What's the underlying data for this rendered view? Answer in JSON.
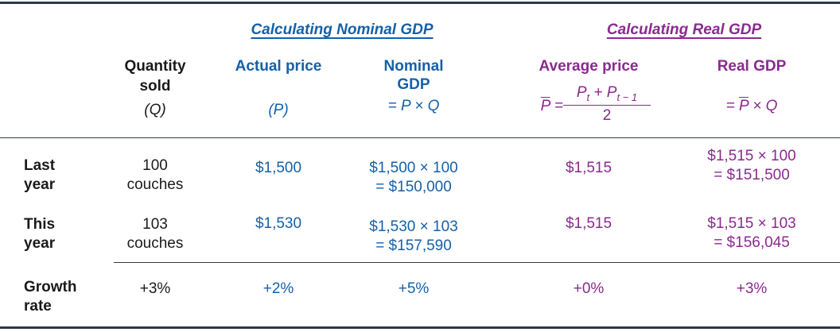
{
  "groups": {
    "nominal": "Calculating Nominal GDP",
    "real": "Calculating Real GDP"
  },
  "headers": {
    "quantity": {
      "line1": "Quantity",
      "line2": "sold",
      "line3": "(Q)"
    },
    "actual_price": {
      "line1": "Actual price",
      "line3": "(P)"
    },
    "nominal_gdp": {
      "line1": "Nominal",
      "line2": "GDP",
      "line3": "= P × Q"
    },
    "average_price": {
      "line1": "Average price",
      "lhs": "P =",
      "numerator": "P",
      "numerator_sub1": "t",
      "numerator_mid": " + P",
      "numerator_sub2": "t − 1",
      "denominator": "2"
    },
    "real_gdp": {
      "line1": "Real GDP",
      "line3": "= P × Q"
    }
  },
  "rows": [
    {
      "label_line1": "Last",
      "label_line2": "year",
      "quantity_line1": "100",
      "quantity_line2": "couches",
      "actual_price": "$1,500",
      "nominal_line1": "$1,500 × 100",
      "nominal_line2": "= $150,000",
      "average_price": "$1,515",
      "real_line1": "$1,515 × 100",
      "real_line2": "= $151,500"
    },
    {
      "label_line1": "This",
      "label_line2": "year",
      "quantity_line1": "103",
      "quantity_line2": "couches",
      "actual_price": "$1,530",
      "nominal_line1": "$1,530 × 103",
      "nominal_line2": "= $157,590",
      "average_price": "$1,515",
      "real_line1": "$1,515 × 103",
      "real_line2": "= $156,045"
    }
  ],
  "growth": {
    "label_line1": "Growth",
    "label_line2": "rate",
    "quantity": "+3%",
    "actual_price": "+2%",
    "nominal_gdp": "+5%",
    "average_price": "+0%",
    "real_gdp": "+3%"
  },
  "colors": {
    "blue": "#1560a8",
    "purple": "#8a2a8f",
    "rule": "#2b3a4a"
  }
}
